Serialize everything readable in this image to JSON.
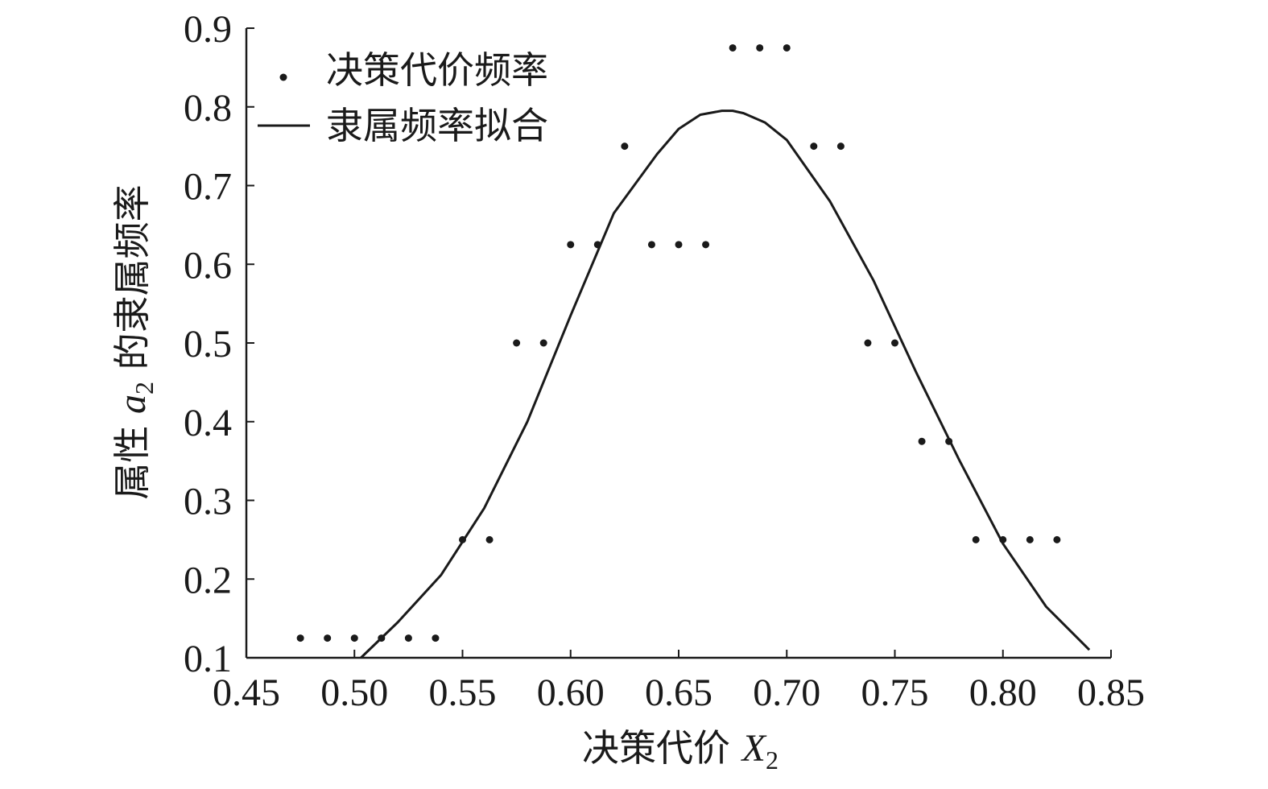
{
  "chart_data": {
    "type": "scatter",
    "xlabel_prefix": "决策代价",
    "xlabel_var": "X",
    "xlabel_sub": "2",
    "ylabel_prefix": "属性",
    "ylabel_var": "a",
    "ylabel_sub": "2",
    "ylabel_suffix": "的隶属频率",
    "xlim": [
      0.45,
      0.85
    ],
    "ylim": [
      0.1,
      0.9
    ],
    "xticks": [
      "0.45",
      "0.50",
      "0.55",
      "0.60",
      "0.65",
      "0.70",
      "0.75",
      "0.80",
      "0.85"
    ],
    "yticks": [
      "0.1",
      "0.2",
      "0.3",
      "0.4",
      "0.5",
      "0.6",
      "0.7",
      "0.8",
      "0.9"
    ],
    "grid": false,
    "legend_position": "top-left",
    "colors": {
      "ink": "#1a1a1a"
    },
    "series": [
      {
        "name": "决策代价频率",
        "kind": "points",
        "x": [
          0.475,
          0.4875,
          0.5,
          0.5125,
          0.525,
          0.5375,
          0.55,
          0.5625,
          0.575,
          0.5875,
          0.6,
          0.6125,
          0.6375,
          0.65,
          0.6625,
          0.625,
          0.675,
          0.6875,
          0.7,
          0.7125,
          0.725,
          0.7375,
          0.75,
          0.7625,
          0.775,
          0.7875,
          0.8,
          0.8125,
          0.825
        ],
        "y": [
          0.125,
          0.125,
          0.125,
          0.125,
          0.125,
          0.125,
          0.25,
          0.25,
          0.5,
          0.5,
          0.625,
          0.625,
          0.625,
          0.625,
          0.625,
          0.75,
          0.875,
          0.875,
          0.875,
          0.75,
          0.75,
          0.5,
          0.5,
          0.375,
          0.375,
          0.25,
          0.25,
          0.25,
          0.25
        ]
      },
      {
        "name": "隶属频率拟合",
        "kind": "line",
        "x": [
          0.503,
          0.52,
          0.54,
          0.56,
          0.58,
          0.6,
          0.62,
          0.64,
          0.65,
          0.66,
          0.67,
          0.675,
          0.68,
          0.69,
          0.7,
          0.72,
          0.74,
          0.76,
          0.78,
          0.8,
          0.82,
          0.84
        ],
        "y": [
          0.1,
          0.145,
          0.205,
          0.29,
          0.4,
          0.535,
          0.665,
          0.74,
          0.772,
          0.79,
          0.795,
          0.795,
          0.792,
          0.78,
          0.758,
          0.68,
          0.58,
          0.462,
          0.35,
          0.245,
          0.165,
          0.11
        ]
      }
    ]
  }
}
